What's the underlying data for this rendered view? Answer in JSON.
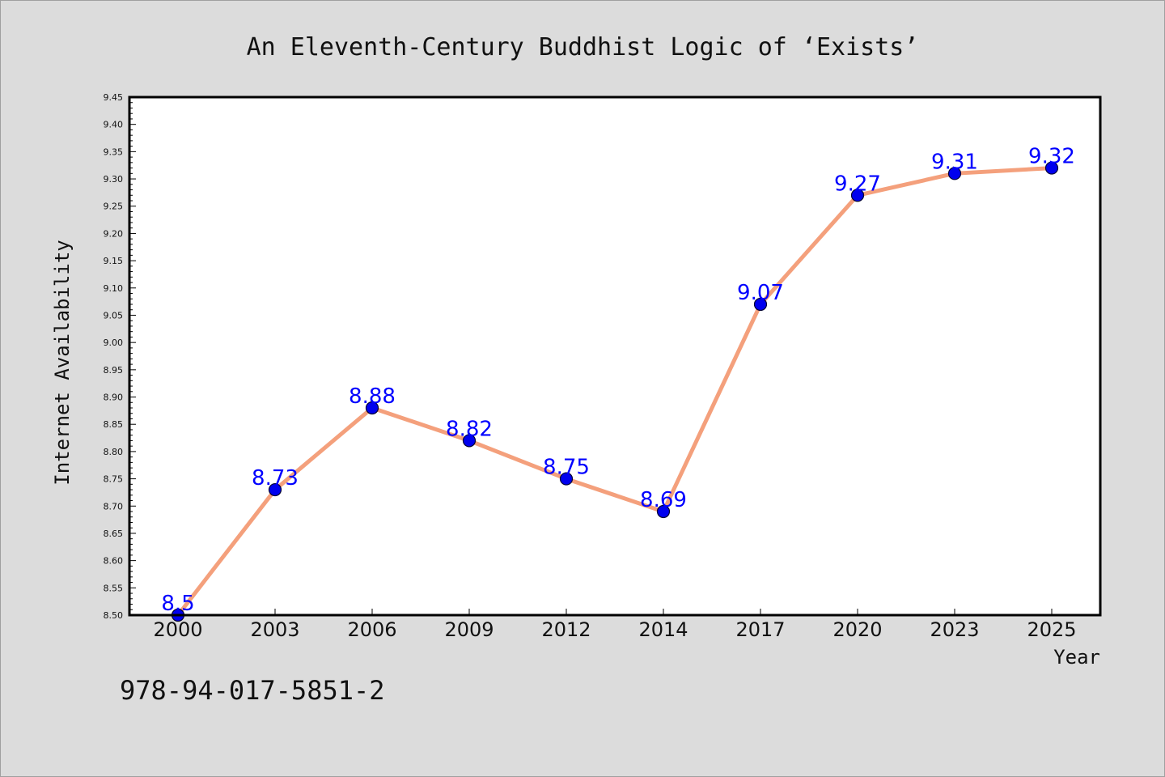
{
  "footnote": "978-94-017-5851-2",
  "colors": {
    "line": "#f4a07c",
    "marker_fill": "#0000ee",
    "marker_stroke": "#000033",
    "data_label": "#0000ff",
    "plot_background": "#ffffff",
    "page_background": "#dcdcdc"
  },
  "chart_data": {
    "type": "line",
    "title": "An Eleventh-Century Buddhist Logic of  ‘Exists’",
    "xlabel": "Year",
    "ylabel": "Internet Availability",
    "categories": [
      "2000",
      "2003",
      "2006",
      "2009",
      "2012",
      "2014",
      "2017",
      "2020",
      "2023",
      "2025"
    ],
    "series": [
      {
        "values": [
          8.5,
          8.73,
          8.88,
          8.82,
          8.75,
          8.69,
          9.07,
          9.27,
          9.31,
          9.32
        ],
        "data_labels": [
          "8.5",
          "8.73",
          "8.88",
          "8.82",
          "8.75",
          "8.69",
          "9.07",
          "9.27",
          "9.31",
          "9.32"
        ]
      }
    ],
    "ylim": [
      8.5,
      9.45
    ],
    "yticks": [
      "8.50",
      "8.55",
      "8.60",
      "8.65",
      "8.70",
      "8.75",
      "8.80",
      "8.85",
      "8.90",
      "8.95",
      "9.00",
      "9.05",
      "9.10",
      "9.15",
      "9.20",
      "9.25",
      "9.30",
      "9.35",
      "9.40",
      "9.45"
    ],
    "grid": false,
    "legend": "none"
  }
}
